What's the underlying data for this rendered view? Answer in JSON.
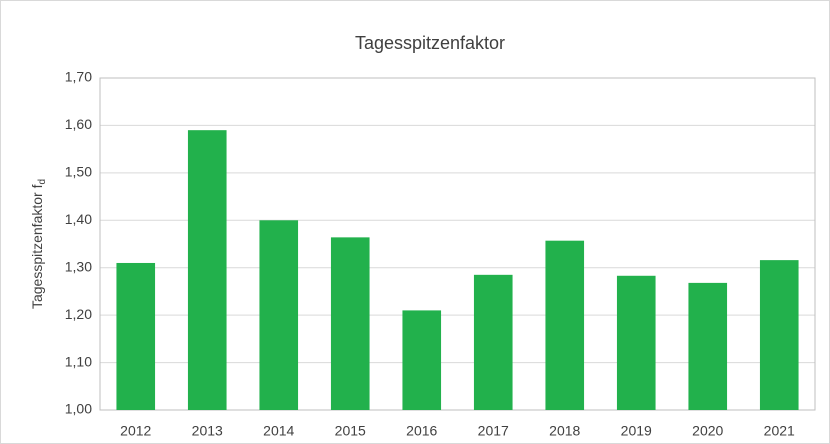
{
  "chart_data": {
    "type": "bar",
    "title": "Tagesspitzenfaktor",
    "y_label": "Tagesspitzenfaktor f",
    "y_label_subscript": "d",
    "categories": [
      "2012",
      "2013",
      "2014",
      "2015",
      "2016",
      "2017",
      "2018",
      "2019",
      "2020",
      "2021"
    ],
    "values": [
      1.31,
      1.59,
      1.4,
      1.364,
      1.21,
      1.285,
      1.357,
      1.283,
      1.268,
      1.316
    ],
    "color": "#22b14c",
    "ylim": [
      1.0,
      1.7
    ],
    "yticks": [
      {
        "value": 1.0,
        "label": "1,00"
      },
      {
        "value": 1.1,
        "label": "1,10"
      },
      {
        "value": 1.2,
        "label": "1,20"
      },
      {
        "value": 1.3,
        "label": "1,30"
      },
      {
        "value": 1.4,
        "label": "1,40"
      },
      {
        "value": 1.5,
        "label": "1,50"
      },
      {
        "value": 1.6,
        "label": "1,60"
      },
      {
        "value": 1.7,
        "label": "1,70"
      }
    ],
    "grid": true
  }
}
